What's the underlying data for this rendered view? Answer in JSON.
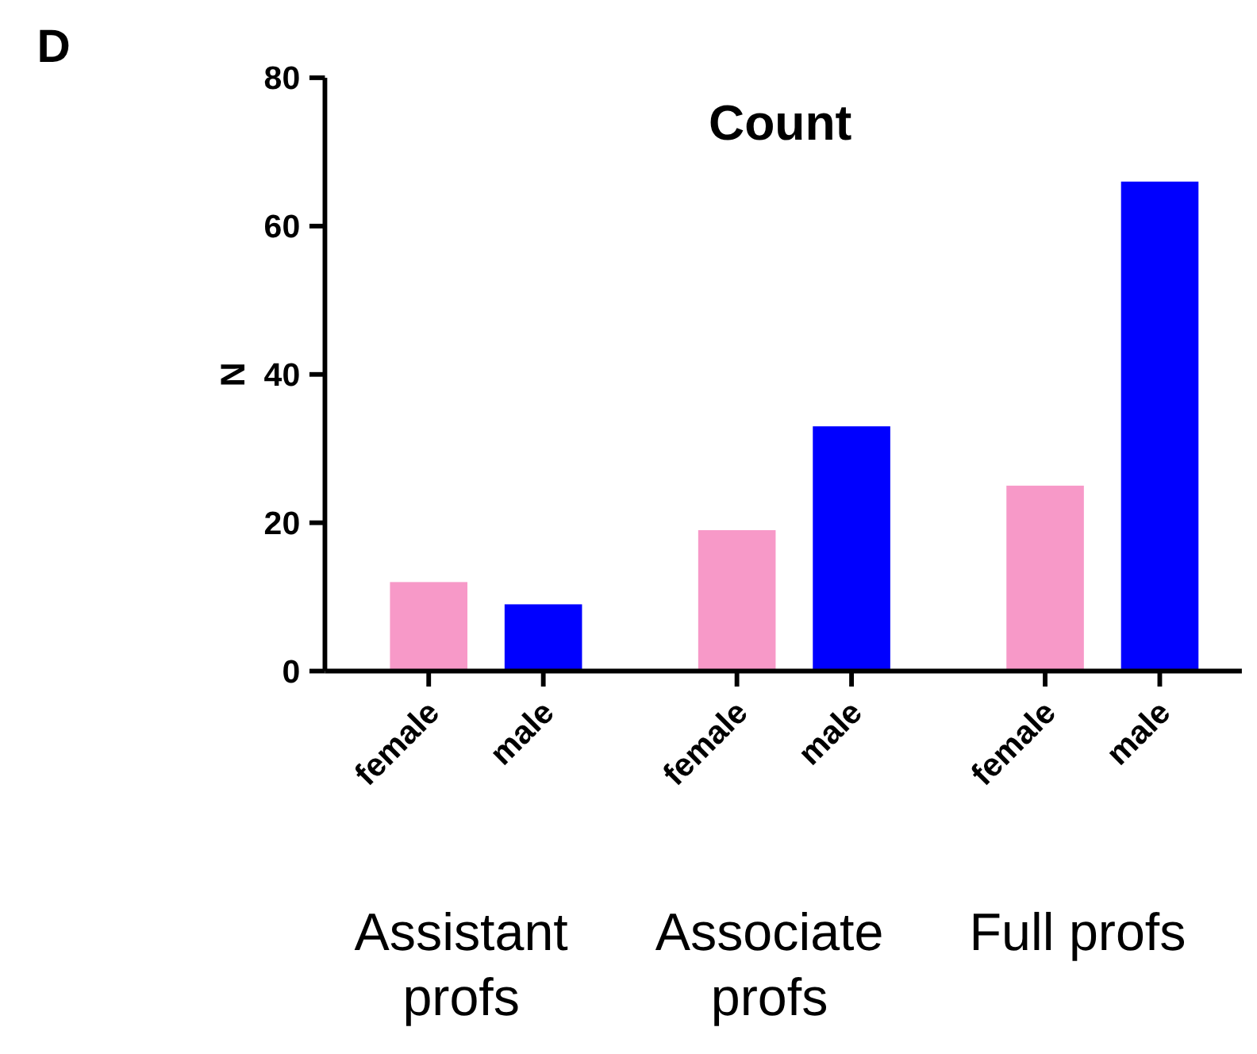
{
  "chart_data": {
    "type": "bar",
    "title": "Count",
    "ylabel": "N",
    "categories": [
      "female",
      "male",
      "female",
      "male",
      "female",
      "male"
    ],
    "values": [
      12,
      9,
      19,
      33,
      25,
      66
    ],
    "colors": [
      "#f799c8",
      "#0000ff",
      "#f799c8",
      "#0000ff",
      "#f799c8",
      "#0000ff"
    ],
    "ylim": [
      0,
      80
    ],
    "yticks": [
      0,
      20,
      40,
      60,
      80
    ],
    "grid": false,
    "annotations": [
      "D",
      "Assistant profs",
      "Associate profs",
      "Full profs"
    ]
  }
}
